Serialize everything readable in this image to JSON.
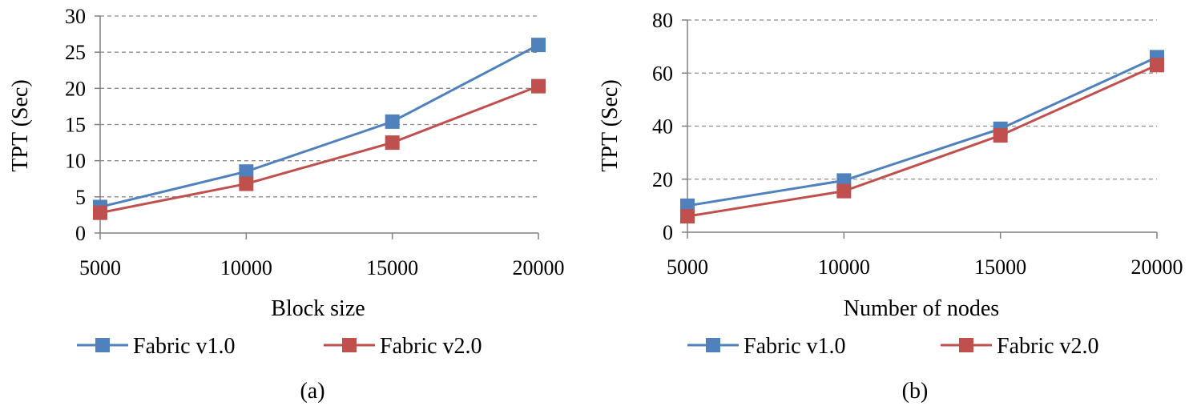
{
  "chart_data": [
    {
      "type": "line",
      "caption": "(a)",
      "xlabel": "Block size",
      "ylabel": "TPT (Sec)",
      "categories": [
        "5000",
        "10000",
        "15000",
        "20000"
      ],
      "ylim": [
        0,
        30
      ],
      "yticks": [
        "0",
        "5",
        "10",
        "15",
        "20",
        "25",
        "30"
      ],
      "grid": true,
      "legend": "bottom",
      "series": [
        {
          "name": "Fabric v1.0",
          "color": "#4f81bd",
          "values": [
            3.6,
            8.5,
            15.4,
            26
          ]
        },
        {
          "name": "Fabric v2.0",
          "color": "#c0504d",
          "values": [
            2.8,
            6.8,
            12.5,
            20.3
          ]
        }
      ]
    },
    {
      "type": "line",
      "caption": "(b)",
      "xlabel": "Number of  nodes",
      "ylabel": "TPT (Sec)",
      "categories": [
        "5000",
        "10000",
        "15000",
        "20000"
      ],
      "ylim": [
        0,
        80
      ],
      "yticks": [
        "0",
        "20",
        "40",
        "60",
        "80"
      ],
      "grid": true,
      "legend": "bottom",
      "series": [
        {
          "name": "Fabric v1.0",
          "color": "#4f81bd",
          "values": [
            10,
            19.5,
            39,
            66
          ]
        },
        {
          "name": "Fabric v2.0",
          "color": "#c0504d",
          "values": [
            6,
            15.5,
            36.5,
            63
          ]
        }
      ]
    }
  ]
}
